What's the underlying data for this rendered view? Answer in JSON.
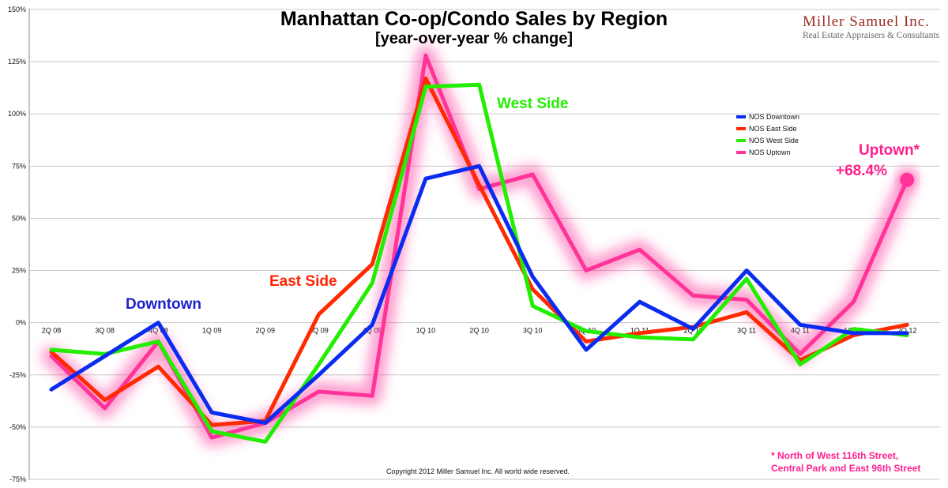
{
  "chart_data": {
    "type": "line",
    "title": "Manhattan Co-op/Condo Sales by Region",
    "subtitle": "[year-over-year % change]",
    "categories": [
      "2Q 08",
      "3Q 08",
      "4Q 08",
      "1Q 09",
      "2Q 09",
      "3Q 09",
      "4Q 09",
      "1Q 10",
      "2Q 10",
      "3Q 10",
      "4Q 10",
      "1Q 11",
      "2Q 11",
      "3Q 11",
      "4Q 11",
      "1Q 12",
      "2Q 12"
    ],
    "y_ticks": [
      "150%",
      "125%",
      "100%",
      "75%",
      "50%",
      "25%",
      "0%",
      "-25%",
      "-50%",
      "-75%"
    ],
    "ylim": [
      -75,
      150
    ],
    "series": [
      {
        "name": "NOS Uptown",
        "color": "#ff3399",
        "glow": true,
        "values": [
          -16,
          -41,
          -9,
          -55,
          -48,
          -33,
          -35,
          128,
          64,
          71,
          25,
          35,
          13,
          11,
          -15,
          10,
          68.4
        ]
      },
      {
        "name": "NOS East Side",
        "color": "#ff2a00",
        "glow": false,
        "values": [
          -14,
          -37,
          -21,
          -49,
          -47,
          4,
          28,
          117,
          66,
          16,
          -9,
          -5,
          -2,
          5,
          -18,
          -6,
          -1
        ]
      },
      {
        "name": "NOS West Side",
        "color": "#22ee00",
        "glow": false,
        "values": [
          -13,
          -15,
          -9,
          -52,
          -57,
          -20,
          19,
          113,
          114,
          8,
          -4,
          -7,
          -8,
          21,
          -20,
          -3,
          -6
        ]
      },
      {
        "name": "NOS Downtown",
        "color": "#0a2cf0",
        "glow": false,
        "values": [
          -32,
          -16,
          0,
          -43,
          -48,
          -25,
          -1,
          69,
          75,
          22,
          -13,
          10,
          -3,
          25,
          -1,
          -5,
          -5
        ]
      }
    ],
    "legend": [
      {
        "name": "NOS Downtown",
        "color": "#0a2cf0"
      },
      {
        "name": "NOS East Side",
        "color": "#ff2a00"
      },
      {
        "name": "NOS West Side",
        "color": "#22ee00"
      },
      {
        "name": "NOS Uptown",
        "color": "#ff3399"
      }
    ],
    "legend_position": "top-right",
    "grid": true,
    "annotations": {
      "downtown": "Downtown",
      "east_side": "East Side",
      "west_side": "West Side",
      "uptown_title": "Uptown*",
      "uptown_value": "+68.4%",
      "footnote_line1": "* North of West 116th Street,",
      "footnote_line2": "Central Park and East 96th Street"
    },
    "copyright": "Copyright 2012 Miller Samuel Inc.  All world wide reserved."
  },
  "brand": {
    "name": "Miller Samuel Inc.",
    "tagline": "Real Estate Appraisers & Consultants"
  },
  "colors": {
    "downtown": "#0a2cf0",
    "east_side": "#ff2a00",
    "west_side": "#22ee00",
    "uptown": "#ff3399",
    "brand": "#9a2a1f"
  }
}
